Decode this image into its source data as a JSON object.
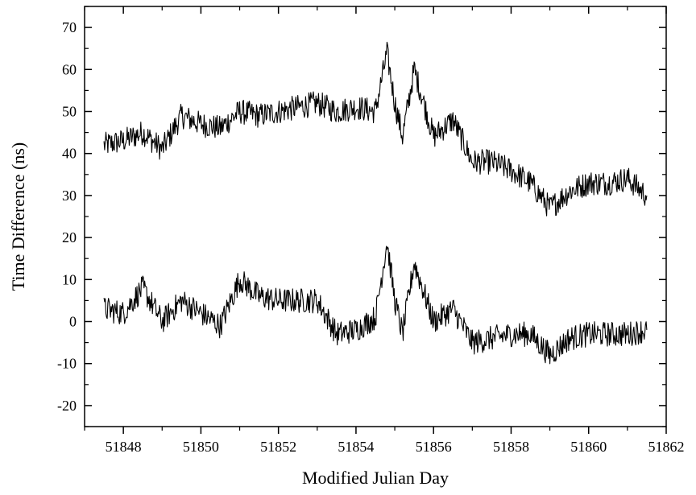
{
  "chart_data": {
    "type": "line",
    "xlabel": "Modified Julian Day",
    "ylabel": "Time Difference (ns)",
    "xlim": [
      51847,
      51862
    ],
    "ylim": [
      -25,
      75
    ],
    "x_ticks": [
      51848,
      51850,
      51852,
      51854,
      51856,
      51858,
      51860,
      51862
    ],
    "x_tick_labels": [
      "51848",
      "51850",
      "51852",
      "51854",
      "51856",
      "51858",
      "51860",
      "51862"
    ],
    "y_ticks": [
      -20,
      -10,
      0,
      10,
      20,
      30,
      40,
      50,
      60,
      70
    ],
    "y_tick_labels": [
      "-20",
      "-10",
      "0",
      "10",
      "20",
      "30",
      "40",
      "50",
      "60",
      "70"
    ],
    "grid": false,
    "series": [
      {
        "x": [
          51847.5,
          51848.0,
          51848.5,
          51849.0,
          51849.5,
          51850.0,
          51850.5,
          51851.0,
          51851.5,
          51852.0,
          51852.5,
          51853.0,
          51853.5,
          51854.0,
          51854.5,
          51854.8,
          51855.0,
          51855.2,
          51855.5,
          51856.0,
          51856.5,
          51857.0,
          51857.5,
          51858.0,
          51858.5,
          51859.0,
          51859.5,
          51860.0,
          51860.5,
          51861.0,
          51861.5
        ],
        "values": [
          42,
          43,
          45,
          41,
          49,
          47,
          46,
          50,
          49,
          50,
          51,
          52,
          50,
          51,
          50,
          64,
          52,
          44,
          60,
          44,
          48,
          38,
          38,
          36,
          33,
          27,
          31,
          33,
          33,
          34,
          30
        ]
      },
      {
        "x": [
          51847.5,
          51848.0,
          51848.5,
          51849.0,
          51849.5,
          51850.0,
          51850.5,
          51851.0,
          51851.5,
          51852.0,
          51852.5,
          51853.0,
          51853.5,
          51854.0,
          51854.5,
          51854.8,
          51855.0,
          51855.2,
          51855.5,
          51856.0,
          51856.5,
          51857.0,
          51857.5,
          51858.0,
          51858.5,
          51859.0,
          51859.5,
          51860.0,
          51860.5,
          51861.0,
          51861.5
        ],
        "values": [
          3,
          2,
          8,
          0,
          5,
          2,
          -1,
          10,
          6,
          5,
          5,
          5,
          -3,
          -2,
          1,
          19,
          5,
          -3,
          14,
          0,
          3,
          -5,
          -4,
          -3,
          -3,
          -8,
          -4,
          -3,
          -3,
          -3,
          -2
        ]
      }
    ]
  }
}
